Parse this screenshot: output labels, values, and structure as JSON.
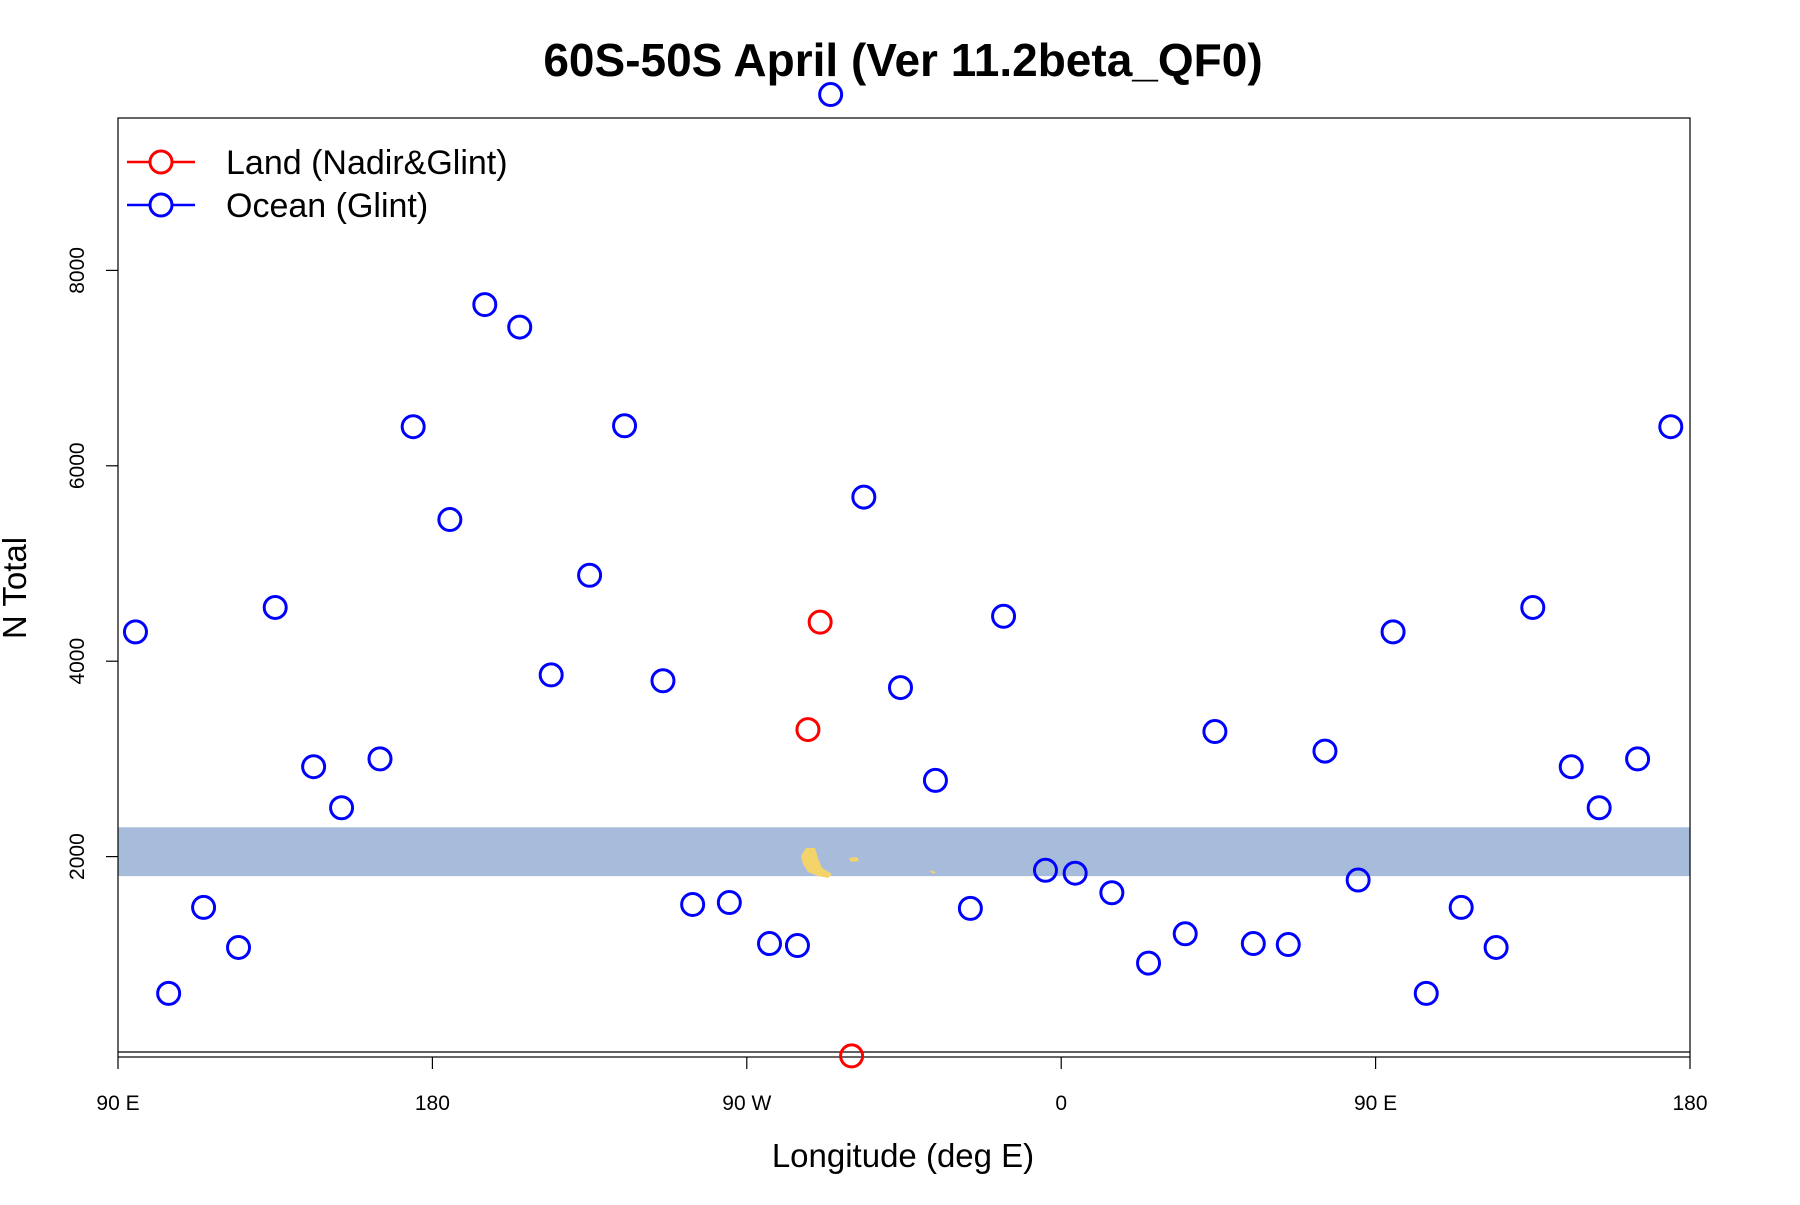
{
  "chart_data": {
    "type": "scatter",
    "title": "60S-50S April (Ver 11.2beta_QF0)",
    "xlabel": "Longitude (deg E)",
    "ylabel": "N Total",
    "xlim": [
      90,
      540
    ],
    "ylim": [
      0,
      9800
    ],
    "x_ticks": [
      {
        "value": 90,
        "label": "90 E"
      },
      {
        "value": 180,
        "label": "180"
      },
      {
        "value": 270,
        "label": "90 W"
      },
      {
        "value": 360,
        "label": "0"
      },
      {
        "value": 450,
        "label": "90 E"
      },
      {
        "value": 540,
        "label": "180"
      }
    ],
    "y_ticks": [
      {
        "value": 2000,
        "label": "2000"
      },
      {
        "value": 4000,
        "label": "4000"
      },
      {
        "value": 6000,
        "label": "6000"
      },
      {
        "value": 8000,
        "label": "8000"
      }
    ],
    "legend": {
      "position": "top-left",
      "entries": [
        {
          "label": "Land (Nadir&Glint)",
          "color": "#ff0000"
        },
        {
          "label": "Ocean (Glint)",
          "color": "#0000ff"
        }
      ]
    },
    "map_band": {
      "ymin": 1800,
      "ymax": 2300,
      "color": "#a7bcdb",
      "land_color": "#f5d36b"
    },
    "series": [
      {
        "name": "Land (Nadir&Glint)",
        "color": "#ff0000",
        "points": [
          {
            "x": 291,
            "y": 4400
          },
          {
            "x": 287.5,
            "y": 3300
          },
          {
            "x": 300,
            "y": -40
          }
        ]
      },
      {
        "name": "Ocean (Glint)",
        "color": "#0000ff",
        "points": [
          {
            "x": 95,
            "y": 4300
          },
          {
            "x": 104.5,
            "y": 600
          },
          {
            "x": 114.5,
            "y": 1480
          },
          {
            "x": 124.5,
            "y": 1070
          },
          {
            "x": 135,
            "y": 4550
          },
          {
            "x": 146,
            "y": 2920
          },
          {
            "x": 154,
            "y": 2500
          },
          {
            "x": 165,
            "y": 3000
          },
          {
            "x": 174.5,
            "y": 6400
          },
          {
            "x": 185,
            "y": 5450
          },
          {
            "x": 195,
            "y": 7650
          },
          {
            "x": 205,
            "y": 7420
          },
          {
            "x": 214,
            "y": 3860
          },
          {
            "x": 225,
            "y": 4880
          },
          {
            "x": 235,
            "y": 6410
          },
          {
            "x": 246,
            "y": 3800
          },
          {
            "x": 254.5,
            "y": 1510
          },
          {
            "x": 265,
            "y": 1530
          },
          {
            "x": 276.5,
            "y": 1110
          },
          {
            "x": 284.5,
            "y": 1090
          },
          {
            "x": 294,
            "y": 9800
          },
          {
            "x": 303.5,
            "y": 5680
          },
          {
            "x": 314,
            "y": 3730
          },
          {
            "x": 324,
            "y": 2780
          },
          {
            "x": 334,
            "y": 1470
          },
          {
            "x": 343.5,
            "y": 4460
          },
          {
            "x": 355.5,
            "y": 1860
          },
          {
            "x": 364,
            "y": 1830
          },
          {
            "x": 374.5,
            "y": 1630
          },
          {
            "x": 385,
            "y": 910
          },
          {
            "x": 395.5,
            "y": 1210
          },
          {
            "x": 404,
            "y": 3280
          },
          {
            "x": 415,
            "y": 1110
          },
          {
            "x": 425,
            "y": 1100
          },
          {
            "x": 435.5,
            "y": 3080
          },
          {
            "x": 445,
            "y": 1760
          },
          {
            "x": 455,
            "y": 4300
          },
          {
            "x": 464.5,
            "y": 600
          },
          {
            "x": 474.5,
            "y": 1480
          },
          {
            "x": 484.5,
            "y": 1070
          },
          {
            "x": 495,
            "y": 4550
          },
          {
            "x": 506,
            "y": 2920
          },
          {
            "x": 514,
            "y": 2500
          },
          {
            "x": 525,
            "y": 3000
          },
          {
            "x": 534.5,
            "y": 6400
          }
        ]
      }
    ]
  }
}
